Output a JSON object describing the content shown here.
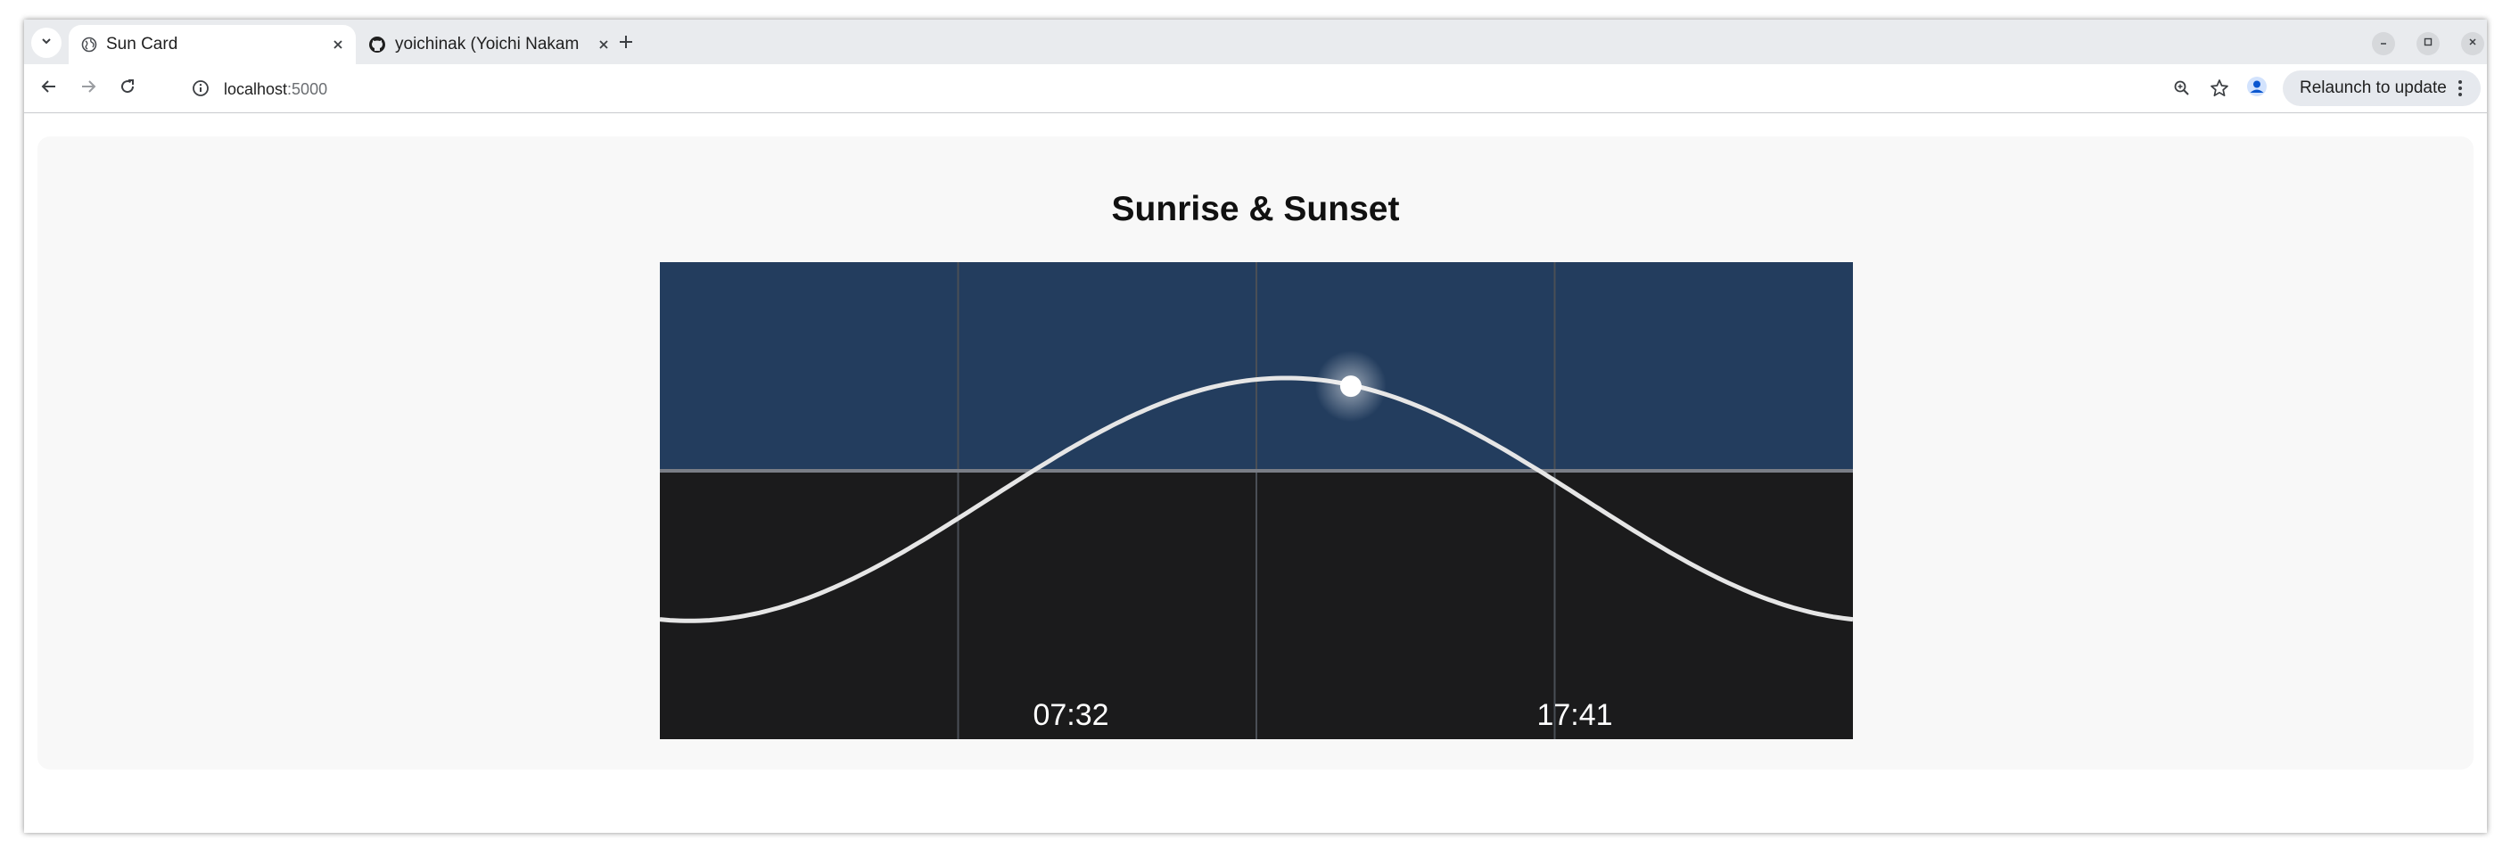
{
  "browser": {
    "tabs": [
      {
        "title": "Sun Card",
        "favicon": "globe-icon",
        "active": true
      },
      {
        "title": "yoichinak (Yoichi Nakam",
        "favicon": "github-icon",
        "active": false
      }
    ],
    "address": {
      "host": "localhost",
      "port": ":5000"
    },
    "relaunch_label": "Relaunch to update"
  },
  "card": {
    "title": "Sunrise & Sunset"
  },
  "chart_data": {
    "type": "line",
    "title": "Sunrise & Sunset",
    "xlabel": "",
    "ylabel": "",
    "day_color": "#233d5e",
    "night_color": "#1b1b1c",
    "curve_color": "#e6e6e6",
    "time_labels": [
      "07:32",
      "17:41"
    ],
    "sunrise": "07:32",
    "sunset": "17:41",
    "x_range_hours": [
      0,
      24
    ],
    "y_range": [
      -1,
      1
    ],
    "series": [
      {
        "values": [
          [
            0,
            -0.55
          ],
          [
            12.6,
            0.34
          ],
          [
            24,
            -0.55
          ]
        ]
      }
    ],
    "current_sun": {
      "hour": 13.9,
      "value": 0.31
    }
  }
}
